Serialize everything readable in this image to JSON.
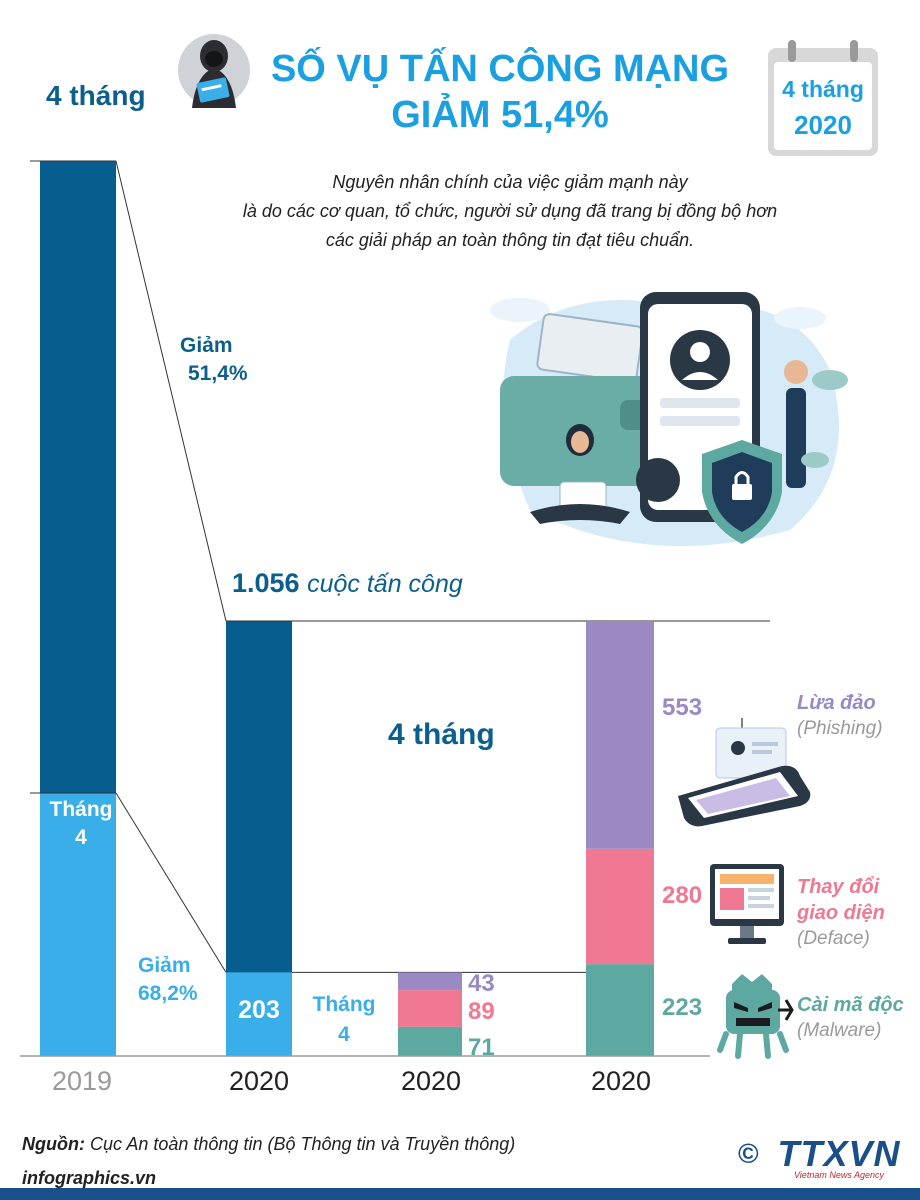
{
  "header": {
    "title_line1": "SỐ VỤ TẤN CÔNG MẠNG",
    "title_line2": "GIẢM 51,4%",
    "calendar_month": "4 tháng",
    "calendar_year": "2020"
  },
  "description": [
    "Nguyên nhân chính của việc giảm mạnh này",
    "là do các cơ quan, tổ chức, người sử dụng đã trang bị đồng bộ hơn",
    "các giải pháp an toàn thông tin đạt tiêu chuẩn."
  ],
  "chart_data": {
    "type": "bar",
    "labels": {
      "bar2019_top": "4 tháng",
      "bar2019_bottom_line1": "Tháng",
      "bar2019_bottom_line2": "4",
      "decrease_4months_line1": "Giảm",
      "decrease_4months_line2": "51,4%",
      "decrease_april_line1": "Giảm",
      "decrease_april_line2": "68,2%",
      "total_2020_number": "1.056",
      "total_2020_unit": "cuộc tấn công",
      "box_label": "4 tháng",
      "april_2020_value": "203",
      "april_breakdown_line1": "Tháng",
      "april_breakdown_line2": "4"
    },
    "x_labels": [
      "2019",
      "2020",
      "2020",
      "2020"
    ],
    "four_months_2020_total": 1056,
    "april_2020_total": 203,
    "decrease_four_months_pct": 51.4,
    "decrease_april_pct": 68.2,
    "categories": [
      {
        "name": "Lừa đảo",
        "name_en": "(Phishing)",
        "four_months": 553,
        "april": 43,
        "color": "#9b89c4"
      },
      {
        "name": "Thay đổi giao diện",
        "name_line1": "Thay đổi",
        "name_line2": "giao diện",
        "name_en": "(Deface)",
        "four_months": 280,
        "april": 89,
        "color": "#f07892"
      },
      {
        "name": "Cài mã độc",
        "name_en": "(Malware)",
        "four_months": 223,
        "april": 71,
        "color": "#5ea8a2"
      }
    ],
    "colors": {
      "dark_blue": "#075e8e",
      "light_blue": "#3aaee8",
      "title_blue": "#1aa0e0"
    }
  },
  "footer": {
    "source_label": "Nguồn:",
    "source_text": "Cục An toàn thông tin (Bộ Thông tin và Truyền thông)",
    "site": "infographics.vn",
    "agency": "TTXVN",
    "agency_sub": "Vietnam News Agency",
    "copyright": "©"
  }
}
